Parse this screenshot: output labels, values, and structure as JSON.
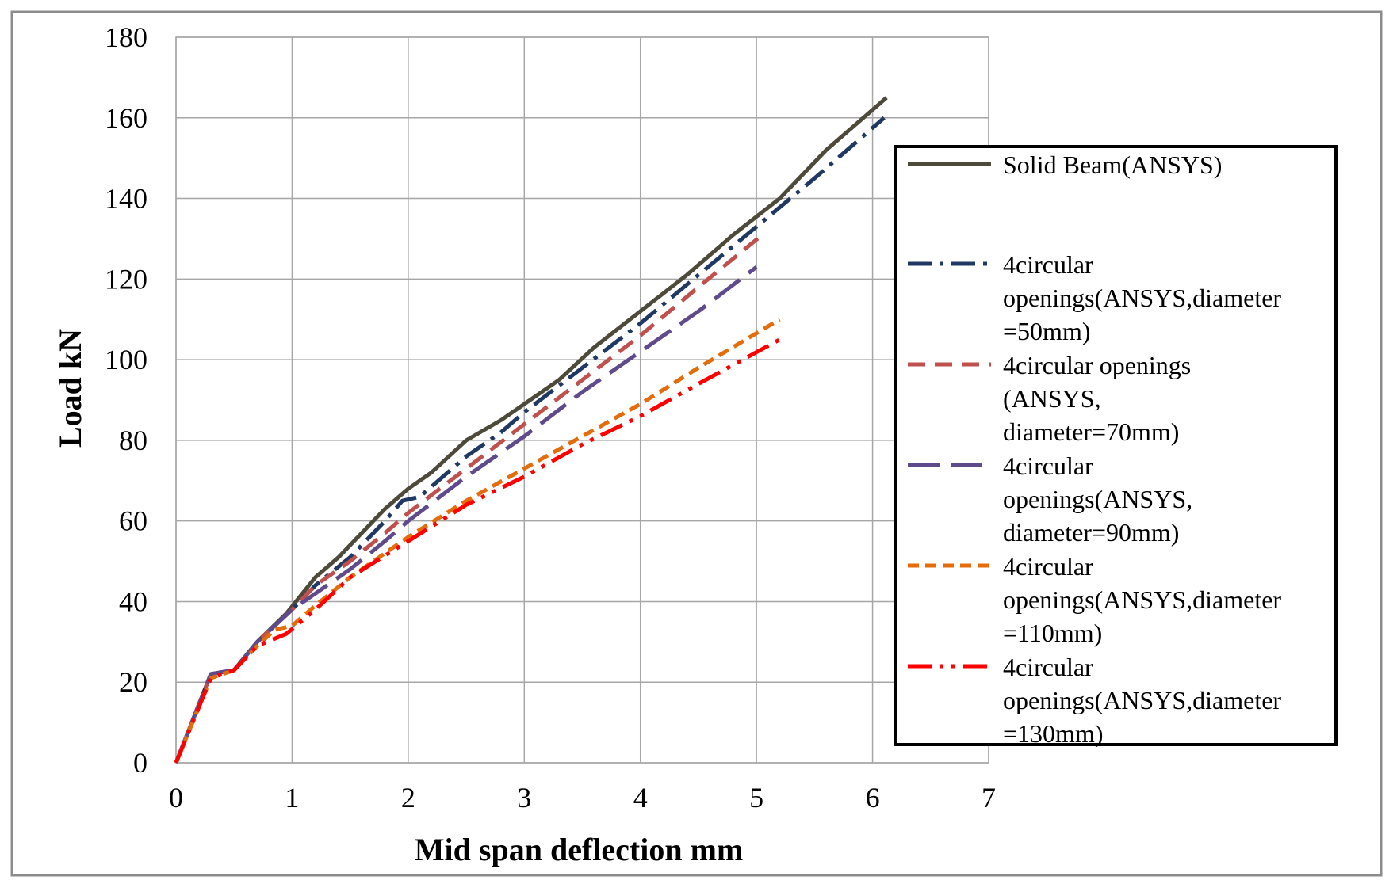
{
  "chart_data": {
    "type": "line",
    "title": "",
    "xlabel": "Mid span deflection mm",
    "ylabel": "Load kN",
    "xlim": [
      0,
      7
    ],
    "ylim": [
      0,
      180
    ],
    "xticks": [
      0,
      1,
      2,
      3,
      4,
      5,
      6,
      7
    ],
    "yticks": [
      0,
      20,
      40,
      60,
      80,
      100,
      120,
      140,
      160,
      180
    ],
    "grid": true,
    "legend_position": "right",
    "series": [
      {
        "name": "Solid Beam(ANSYS)",
        "color": "#4d4a3a",
        "dash": "solid",
        "points": [
          [
            0,
            0
          ],
          [
            0.3,
            22
          ],
          [
            0.5,
            23
          ],
          [
            0.7,
            30
          ],
          [
            0.95,
            37
          ],
          [
            1.2,
            46
          ],
          [
            1.4,
            51
          ],
          [
            1.6,
            57
          ],
          [
            1.8,
            63
          ],
          [
            2.0,
            68
          ],
          [
            2.2,
            72
          ],
          [
            2.5,
            80
          ],
          [
            2.8,
            85
          ],
          [
            3.0,
            89
          ],
          [
            3.3,
            95
          ],
          [
            3.6,
            103
          ],
          [
            4.0,
            112
          ],
          [
            4.4,
            121
          ],
          [
            4.8,
            131
          ],
          [
            5.2,
            140
          ],
          [
            5.6,
            152
          ],
          [
            6.0,
            162
          ],
          [
            6.12,
            165
          ]
        ]
      },
      {
        "name": "4circular openings(ANSYS,diameter =50mm)",
        "color": "#1f3864",
        "dash": "dashdot",
        "points": [
          [
            0,
            0
          ],
          [
            0.3,
            22
          ],
          [
            0.5,
            23
          ],
          [
            0.7,
            30
          ],
          [
            1.0,
            38
          ],
          [
            1.2,
            44
          ],
          [
            1.5,
            51
          ],
          [
            1.8,
            60
          ],
          [
            1.95,
            65
          ],
          [
            2.1,
            66
          ],
          [
            2.5,
            76
          ],
          [
            2.8,
            82
          ],
          [
            3.0,
            87
          ],
          [
            3.5,
            98
          ],
          [
            4.0,
            109
          ],
          [
            4.5,
            121
          ],
          [
            5.0,
            133
          ],
          [
            5.5,
            145
          ],
          [
            6.1,
            160
          ]
        ]
      },
      {
        "name": "4circular openings (ANSYS, diameter=70mm)",
        "color": "#c0504d",
        "dash": "dash",
        "points": [
          [
            0,
            0
          ],
          [
            0.3,
            22
          ],
          [
            0.5,
            23
          ],
          [
            0.7,
            30
          ],
          [
            1.0,
            38
          ],
          [
            1.2,
            44
          ],
          [
            1.5,
            50
          ],
          [
            1.8,
            57
          ],
          [
            2.0,
            62
          ],
          [
            2.5,
            73
          ],
          [
            3.0,
            84
          ],
          [
            3.5,
            95
          ],
          [
            4.0,
            106
          ],
          [
            4.5,
            118
          ],
          [
            5.05,
            131
          ]
        ]
      },
      {
        "name": "4circular openings(ANSYS, diameter=90mm)",
        "color": "#5f4b8b",
        "dash": "longdash",
        "points": [
          [
            0,
            0
          ],
          [
            0.3,
            22
          ],
          [
            0.5,
            23
          ],
          [
            0.7,
            30
          ],
          [
            1.0,
            38
          ],
          [
            1.2,
            42
          ],
          [
            1.5,
            48
          ],
          [
            1.8,
            55
          ],
          [
            2.0,
            60
          ],
          [
            2.5,
            71
          ],
          [
            3.0,
            81
          ],
          [
            3.5,
            92
          ],
          [
            4.0,
            102
          ],
          [
            4.5,
            112
          ],
          [
            5.0,
            123
          ]
        ]
      },
      {
        "name": "4circular openings(ANSYS,diameter =110mm)",
        "color": "#e46c0a",
        "dash": "shortdash",
        "points": [
          [
            0,
            0
          ],
          [
            0.3,
            21
          ],
          [
            0.5,
            23
          ],
          [
            0.7,
            29
          ],
          [
            0.85,
            33
          ],
          [
            1.0,
            34
          ],
          [
            1.2,
            39
          ],
          [
            1.5,
            46
          ],
          [
            2.0,
            56
          ],
          [
            2.5,
            65
          ],
          [
            3.0,
            73
          ],
          [
            3.5,
            81
          ],
          [
            4.0,
            89
          ],
          [
            4.5,
            98
          ],
          [
            5.2,
            110
          ]
        ]
      },
      {
        "name": "4circular openings(ANSYS,diameter =130mm)",
        "color": "#ff0000",
        "dash": "dashdotdot",
        "points": [
          [
            0,
            0
          ],
          [
            0.3,
            21
          ],
          [
            0.5,
            23
          ],
          [
            0.7,
            29
          ],
          [
            0.95,
            32
          ],
          [
            1.2,
            38
          ],
          [
            1.5,
            46
          ],
          [
            2.0,
            55
          ],
          [
            2.5,
            64
          ],
          [
            3.0,
            71
          ],
          [
            3.5,
            79
          ],
          [
            4.0,
            86
          ],
          [
            4.5,
            94
          ],
          [
            5.2,
            105
          ]
        ]
      }
    ]
  },
  "legend": {
    "entries": [
      {
        "lines": [
          "Solid Beam(ANSYS)"
        ]
      },
      {
        "lines": [
          "4circular",
          "openings(ANSYS,diameter",
          "=50mm)"
        ]
      },
      {
        "lines": [
          "4circular openings",
          "(ANSYS,",
          "diameter=70mm)"
        ]
      },
      {
        "lines": [
          "4circular",
          "openings(ANSYS,",
          "diameter=90mm)"
        ]
      },
      {
        "lines": [
          "4circular",
          "openings(ANSYS,diameter",
          "=110mm)"
        ]
      },
      {
        "lines": [
          "4circular",
          "openings(ANSYS,diameter",
          "=130mm)"
        ]
      }
    ]
  }
}
